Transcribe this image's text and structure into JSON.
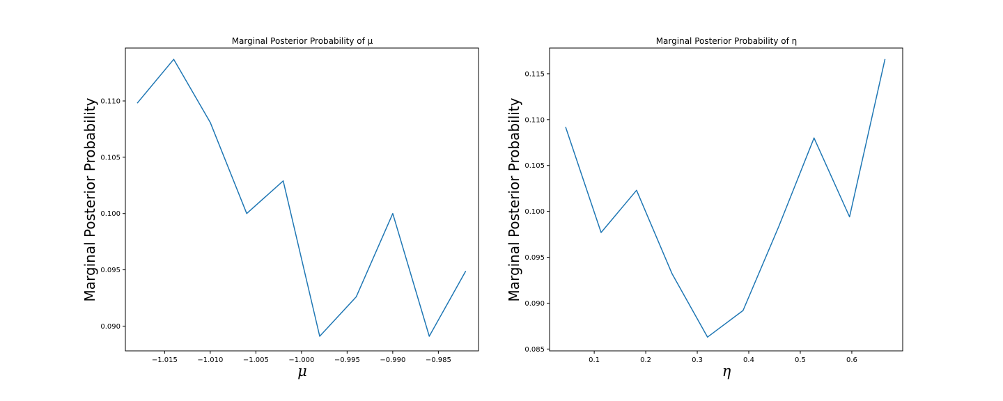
{
  "chart_data": [
    {
      "type": "line",
      "title": "Marginal Posterior Probability of μ",
      "xlabel": "μ",
      "ylabel": "Marginal Posterior Probability",
      "xlim": [
        -1.0193,
        -0.9806
      ],
      "ylim": [
        0.0878,
        0.1147
      ],
      "xticks": [
        -1.015,
        -1.01,
        -1.005,
        -1.0,
        -0.995,
        -0.99,
        -0.985
      ],
      "xtick_labels": [
        "−1.015",
        "−1.010",
        "−1.005",
        "−1.000",
        "−0.995",
        "−0.990",
        "−0.985"
      ],
      "yticks": [
        0.09,
        0.095,
        0.1,
        0.105,
        0.11
      ],
      "ytick_labels": [
        "0.090",
        "0.095",
        "0.100",
        "0.105",
        "0.110"
      ],
      "grid": false,
      "color": "#1f77b4",
      "x": [
        -1.018,
        -1.014,
        -1.01,
        -1.006,
        -1.002,
        -0.998,
        -0.994,
        -0.99,
        -0.986,
        -0.982
      ],
      "y": [
        0.1098,
        0.1137,
        0.1081,
        0.1,
        0.1029,
        0.0891,
        0.0926,
        0.1,
        0.0891,
        0.0949
      ]
    },
    {
      "type": "line",
      "title": "Marginal Posterior Probability of η",
      "xlabel": "η",
      "ylabel": "Marginal Posterior Probability",
      "xlim": [
        0.0133,
        0.6988
      ],
      "ylim": [
        0.0848,
        0.1178
      ],
      "xticks": [
        0.1,
        0.2,
        0.3,
        0.4,
        0.5,
        0.6
      ],
      "xtick_labels": [
        "0.1",
        "0.2",
        "0.3",
        "0.4",
        "0.5",
        "0.6"
      ],
      "yticks": [
        0.085,
        0.09,
        0.095,
        0.1,
        0.105,
        0.11,
        0.115
      ],
      "ytick_labels": [
        "0.085",
        "0.090",
        "0.095",
        "0.100",
        "0.105",
        "0.110",
        "0.115"
      ],
      "grid": false,
      "color": "#1f77b4",
      "x": [
        0.0444,
        0.1133,
        0.1822,
        0.2511,
        0.32,
        0.3889,
        0.4578,
        0.5267,
        0.5956,
        0.6644
      ],
      "y": [
        0.1092,
        0.0977,
        0.1023,
        0.0932,
        0.0863,
        0.0892,
        0.0983,
        0.108,
        0.0994,
        0.1166
      ]
    }
  ]
}
